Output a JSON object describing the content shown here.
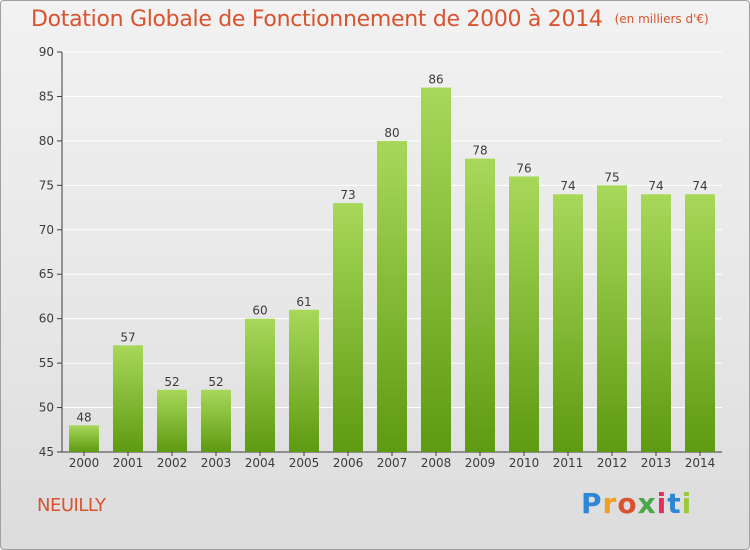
{
  "title": "Dotation Globale de Fonctionnement de 2000 à 2014",
  "subtitle": "(en milliers d'€)",
  "commune": "NEUILLY",
  "logo": {
    "text": "Proxiti",
    "colors": [
      "#2e86d6",
      "#f0a020",
      "#d8532f",
      "#4aa84a",
      "#e03060",
      "#2e86d6",
      "#9bc93a"
    ]
  },
  "colors": {
    "title": "#d8532f",
    "bar_light": "#a8d85a",
    "bar_dark": "#5e9a12",
    "axis": "#3c3c3c",
    "grid": "#ffffff"
  },
  "chart_data": {
    "type": "bar",
    "categories": [
      "2000",
      "2001",
      "2002",
      "2003",
      "2004",
      "2005",
      "2006",
      "2007",
      "2008",
      "2009",
      "2010",
      "2011",
      "2012",
      "2013",
      "2014"
    ],
    "values": [
      48,
      57,
      52,
      52,
      60,
      61,
      73,
      80,
      86,
      78,
      76,
      74,
      75,
      74,
      74
    ],
    "ylim": [
      45,
      90
    ],
    "yticks": [
      45,
      50,
      55,
      60,
      65,
      70,
      75,
      80,
      85,
      90
    ],
    "grid": true,
    "data_labels": true
  }
}
